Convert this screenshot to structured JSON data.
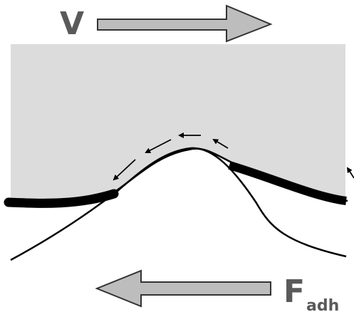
{
  "labels": {
    "velocity": "V",
    "force": "F",
    "force_subscript": "adh"
  }
}
